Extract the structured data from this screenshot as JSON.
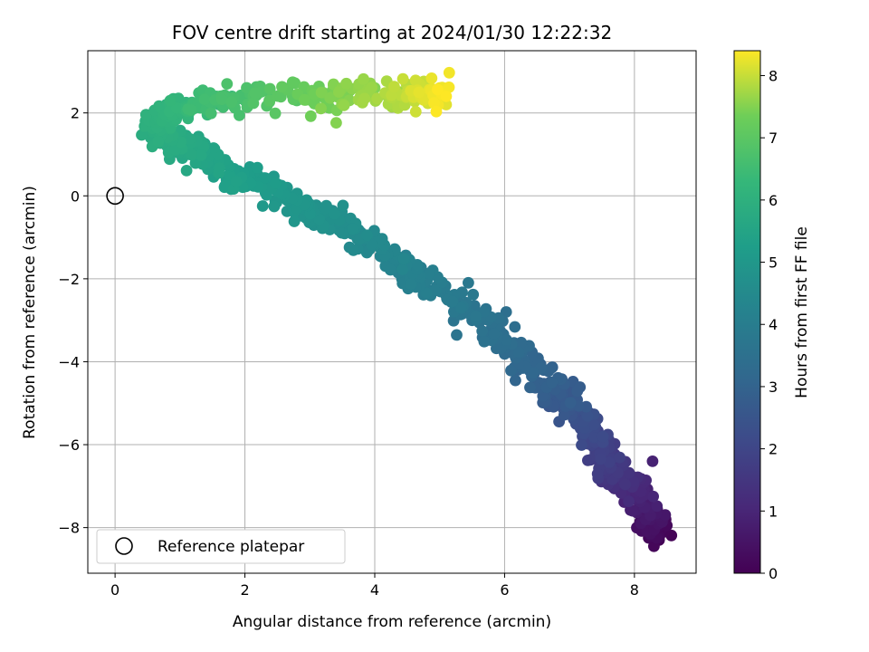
{
  "chart_data": {
    "type": "scatter",
    "title": "FOV centre drift starting at 2024/01/30 12:22:32",
    "xlabel": "Angular distance from reference (arcmin)",
    "ylabel": "Rotation from reference (arcmin)",
    "xlim": [
      -0.42,
      8.95
    ],
    "ylim": [
      -9.1,
      3.5
    ],
    "x_ticks": [
      0,
      2,
      4,
      6,
      8
    ],
    "y_ticks": [
      -8,
      -6,
      -4,
      -2,
      0,
      2
    ],
    "grid": true,
    "colorbar": {
      "label": "Hours from first FF file",
      "range": [
        0,
        8.4
      ],
      "ticks": [
        0,
        1,
        2,
        3,
        4,
        5,
        6,
        7,
        8
      ],
      "colormap": "viridis"
    },
    "legend": {
      "placement": "lower-left",
      "entries": [
        "Reference platepar"
      ]
    },
    "reference_point": {
      "x": 0,
      "y": 0
    },
    "drift_path": {
      "description_points": [
        {
          "x": 8.4,
          "y": -8.3,
          "t": 0.0
        },
        {
          "x": 8.2,
          "y": -7.6,
          "t": 0.6
        },
        {
          "x": 7.9,
          "y": -7.0,
          "t": 1.2
        },
        {
          "x": 7.6,
          "y": -6.4,
          "t": 1.7
        },
        {
          "x": 7.3,
          "y": -5.6,
          "t": 2.2
        },
        {
          "x": 6.9,
          "y": -4.8,
          "t": 2.7
        },
        {
          "x": 6.4,
          "y": -4.1,
          "t": 3.1
        },
        {
          "x": 5.8,
          "y": -3.2,
          "t": 3.5
        },
        {
          "x": 5.1,
          "y": -2.4,
          "t": 3.9
        },
        {
          "x": 4.4,
          "y": -1.7,
          "t": 4.2
        },
        {
          "x": 3.8,
          "y": -1.0,
          "t": 4.5
        },
        {
          "x": 3.1,
          "y": -0.4,
          "t": 4.8
        },
        {
          "x": 2.4,
          "y": 0.2,
          "t": 5.1
        },
        {
          "x": 1.6,
          "y": 0.7,
          "t": 5.4
        },
        {
          "x": 1.0,
          "y": 1.2,
          "t": 5.7
        },
        {
          "x": 0.6,
          "y": 1.6,
          "t": 5.9
        },
        {
          "x": 0.8,
          "y": 2.0,
          "t": 6.1
        },
        {
          "x": 1.5,
          "y": 2.3,
          "t": 6.5
        },
        {
          "x": 2.5,
          "y": 2.4,
          "t": 7.0
        },
        {
          "x": 3.5,
          "y": 2.4,
          "t": 7.5
        },
        {
          "x": 4.4,
          "y": 2.5,
          "t": 7.9
        },
        {
          "x": 5.1,
          "y": 2.4,
          "t": 8.4
        }
      ],
      "scatter_rows": [
        [
          8.38,
          -8.3,
          0.05
        ],
        [
          8.46,
          -8.1,
          0.1
        ],
        [
          8.3,
          -8.45,
          0.15
        ],
        [
          8.5,
          -7.95,
          0.2
        ],
        [
          8.25,
          -8.2,
          0.25
        ],
        [
          8.4,
          -7.8,
          0.3
        ],
        [
          8.2,
          -7.7,
          0.4
        ],
        [
          8.35,
          -7.55,
          0.5
        ],
        [
          8.1,
          -7.9,
          0.55
        ],
        [
          8.15,
          -7.4,
          0.7
        ],
        [
          8.0,
          -7.3,
          0.8
        ],
        [
          8.28,
          -6.4,
          0.9
        ],
        [
          7.9,
          -7.15,
          1.0
        ],
        [
          7.85,
          -6.9,
          1.1
        ],
        [
          7.75,
          -6.6,
          1.3
        ],
        [
          7.95,
          -6.75,
          1.2
        ],
        [
          7.7,
          -6.3,
          1.5
        ],
        [
          7.6,
          -6.55,
          1.55
        ],
        [
          7.55,
          -6.1,
          1.7
        ],
        [
          7.4,
          -6.2,
          1.8
        ],
        [
          7.5,
          -5.9,
          1.9
        ],
        [
          7.35,
          -5.7,
          2.0
        ],
        [
          7.2,
          -5.8,
          2.1
        ],
        [
          7.3,
          -5.4,
          2.2
        ],
        [
          7.1,
          -5.5,
          2.3
        ],
        [
          7.05,
          -5.2,
          2.4
        ],
        [
          6.9,
          -5.0,
          2.5
        ],
        [
          7.0,
          -4.7,
          2.6
        ],
        [
          6.8,
          -4.8,
          2.65
        ],
        [
          6.7,
          -4.5,
          2.75
        ],
        [
          6.6,
          -4.2,
          2.85
        ],
        [
          6.45,
          -4.3,
          2.9
        ],
        [
          6.3,
          -4.0,
          3.0
        ],
        [
          6.2,
          -4.2,
          3.05
        ],
        [
          6.1,
          -3.6,
          3.2
        ],
        [
          5.95,
          -3.4,
          3.3
        ],
        [
          5.8,
          -3.2,
          3.4
        ],
        [
          5.7,
          -3.5,
          3.45
        ],
        [
          5.6,
          -2.9,
          3.55
        ],
        [
          5.5,
          -3.0,
          3.6
        ],
        [
          5.4,
          -2.7,
          3.7
        ],
        [
          5.25,
          -2.6,
          3.75
        ],
        [
          5.1,
          -2.4,
          3.85
        ],
        [
          4.95,
          -2.2,
          3.95
        ],
        [
          4.8,
          -2.3,
          4.0
        ],
        [
          4.7,
          -2.0,
          4.05
        ],
        [
          4.55,
          -1.8,
          4.15
        ],
        [
          4.4,
          -1.7,
          4.2
        ],
        [
          4.3,
          -1.5,
          4.25
        ],
        [
          4.15,
          -1.4,
          4.3
        ],
        [
          4.0,
          -1.2,
          4.4
        ],
        [
          3.85,
          -1.0,
          4.45
        ],
        [
          3.7,
          -0.9,
          4.5
        ],
        [
          3.55,
          -0.7,
          4.6
        ],
        [
          3.4,
          -0.6,
          4.65
        ],
        [
          3.25,
          -0.4,
          4.75
        ],
        [
          3.1,
          -0.3,
          4.8
        ],
        [
          2.95,
          -0.1,
          4.9
        ],
        [
          2.8,
          0.0,
          4.95
        ],
        [
          2.65,
          0.2,
          5.0
        ],
        [
          2.5,
          0.1,
          5.05
        ],
        [
          2.35,
          0.3,
          5.1
        ],
        [
          2.2,
          0.4,
          5.15
        ],
        [
          2.05,
          0.5,
          5.2
        ],
        [
          1.9,
          0.6,
          5.25
        ],
        [
          1.75,
          0.5,
          5.3
        ],
        [
          1.6,
          0.7,
          5.35
        ],
        [
          1.45,
          0.8,
          5.4
        ],
        [
          1.3,
          0.9,
          5.45
        ],
        [
          1.15,
          1.0,
          5.5
        ],
        [
          1.0,
          1.1,
          5.55
        ],
        [
          0.9,
          1.3,
          5.6
        ],
        [
          0.8,
          1.2,
          5.65
        ],
        [
          0.7,
          1.5,
          5.7
        ],
        [
          0.6,
          1.6,
          5.75
        ],
        [
          0.55,
          1.4,
          5.8
        ],
        [
          0.65,
          1.8,
          5.85
        ],
        [
          0.75,
          1.9,
          5.9
        ],
        [
          0.85,
          2.0,
          5.95
        ],
        [
          1.0,
          2.1,
          6.0
        ],
        [
          1.2,
          2.2,
          6.1
        ],
        [
          1.4,
          2.3,
          6.2
        ],
        [
          1.6,
          2.2,
          6.3
        ],
        [
          1.8,
          2.4,
          6.4
        ],
        [
          2.0,
          2.3,
          6.5
        ],
        [
          2.2,
          2.5,
          6.6
        ],
        [
          2.4,
          2.4,
          6.7
        ],
        [
          2.6,
          2.6,
          6.8
        ],
        [
          2.8,
          2.3,
          6.9
        ],
        [
          3.0,
          2.5,
          7.0
        ],
        [
          3.2,
          2.4,
          7.1
        ],
        [
          3.4,
          2.6,
          7.2
        ],
        [
          3.6,
          2.3,
          7.3
        ],
        [
          3.8,
          2.5,
          7.4
        ],
        [
          4.0,
          2.6,
          7.5
        ],
        [
          4.2,
          2.4,
          7.6
        ],
        [
          4.4,
          2.5,
          7.7
        ],
        [
          4.6,
          2.6,
          7.8
        ],
        [
          4.8,
          2.3,
          7.9
        ],
        [
          5.0,
          2.5,
          8.0
        ],
        [
          5.1,
          2.2,
          8.2
        ],
        [
          5.0,
          2.6,
          8.3
        ],
        [
          5.1,
          2.4,
          8.4
        ]
      ]
    }
  }
}
